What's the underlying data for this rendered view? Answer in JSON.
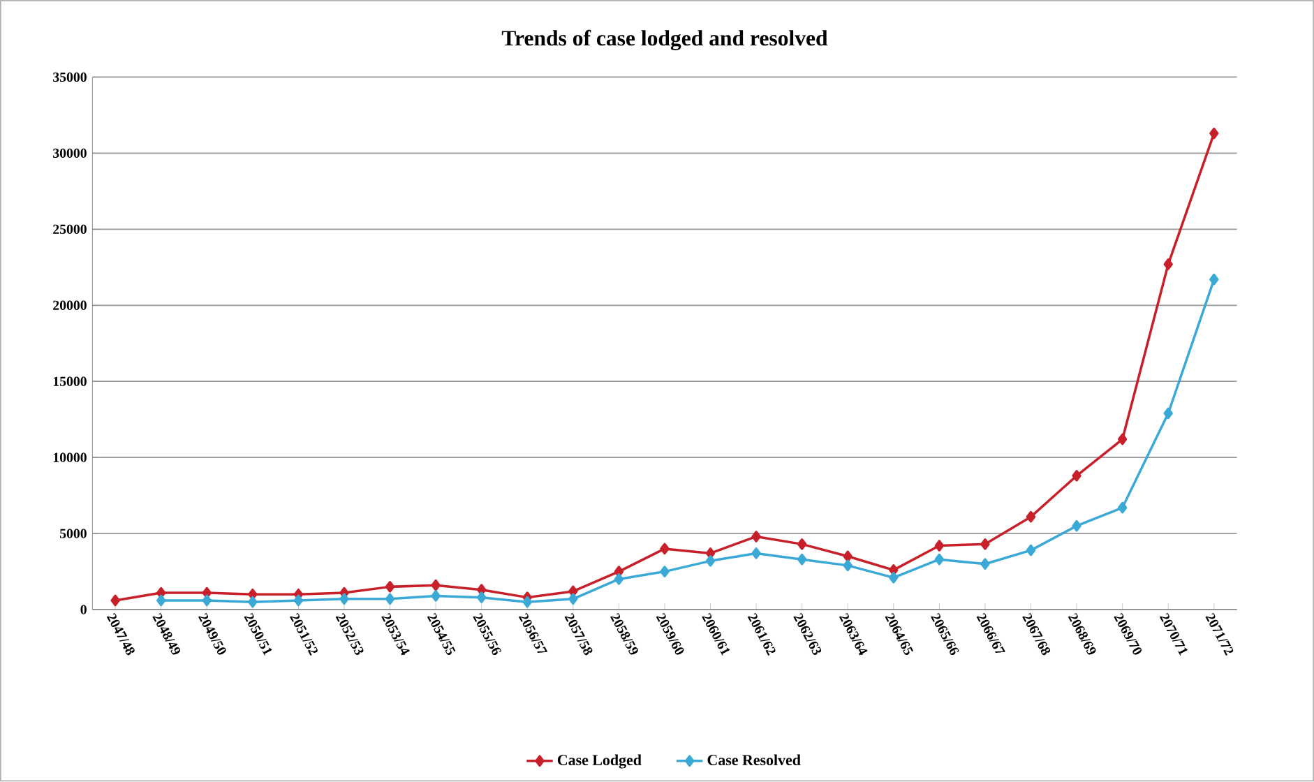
{
  "chart_data": {
    "type": "line",
    "title": "Trends of case lodged  and  resolved",
    "categories": [
      "2047/48",
      "2048/49",
      "2049/50",
      "2050/51",
      "2051/52",
      "2052/53",
      "2053/54",
      "2054/55",
      "2055/56",
      "2056/57",
      "2057/58",
      "2058/59",
      "2059/60",
      "2060/61",
      "2061/62",
      "2062/63",
      "2063/64",
      "2064/65",
      "2065/66",
      "2066/67",
      "2067/68",
      "2068/69",
      "2069/70",
      "2070/71",
      "2071/72"
    ],
    "series": [
      {
        "name": "Case Lodged",
        "color": "#c8202a",
        "values": [
          600,
          1100,
          1100,
          1000,
          1000,
          1100,
          1500,
          1600,
          1300,
          800,
          1200,
          2500,
          4000,
          3700,
          4800,
          4300,
          3500,
          2600,
          4200,
          4300,
          6100,
          8800,
          11200,
          22700,
          31300
        ]
      },
      {
        "name": "Case Resolved",
        "color": "#3aa9d6",
        "values": [
          null,
          600,
          600,
          500,
          600,
          700,
          700,
          900,
          800,
          500,
          700,
          2000,
          2500,
          3200,
          3700,
          3300,
          2900,
          2100,
          3300,
          3000,
          3900,
          5500,
          6700,
          12900,
          21700
        ]
      }
    ],
    "ylim": [
      0,
      35000
    ],
    "yticks": [
      0,
      5000,
      10000,
      15000,
      20000,
      25000,
      30000,
      35000
    ],
    "grid": "y",
    "legend": "bottom",
    "marker": "diamond",
    "line_style": "solid"
  }
}
